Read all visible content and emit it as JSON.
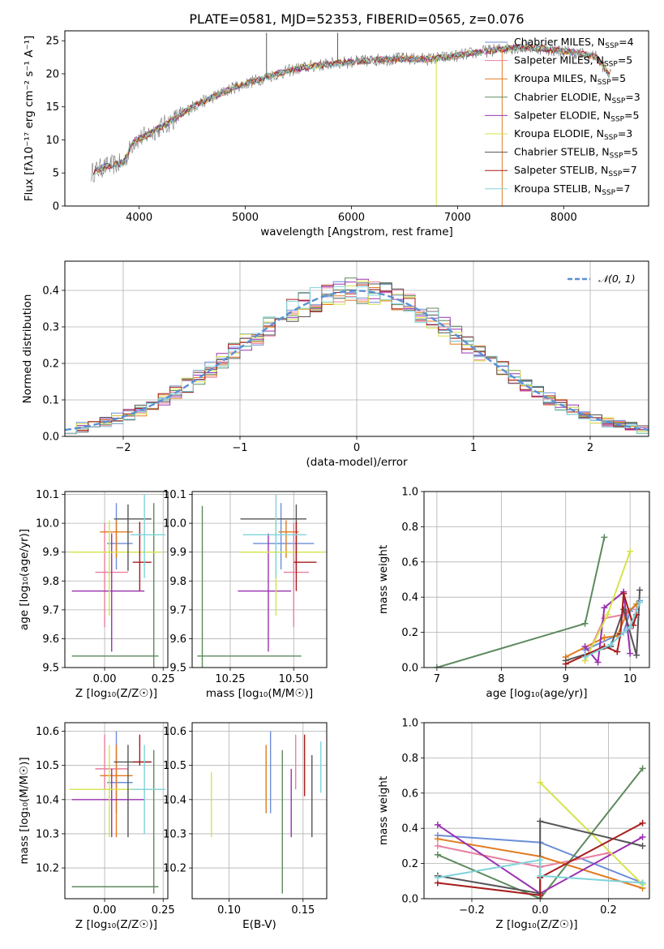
{
  "title": "PLATE=0581, MJD=52353, FIBERID=0565, z=0.076",
  "models": [
    {
      "name": "Chabrier MILES",
      "nssp": 4,
      "color": "#6c8ed8"
    },
    {
      "name": "Salpeter MILES",
      "nssp": 5,
      "color": "#e87fa0"
    },
    {
      "name": "Kroupa MILES",
      "nssp": 5,
      "color": "#e07b20"
    },
    {
      "name": "Chabrier ELODIE",
      "nssp": 3,
      "color": "#5e8a5e"
    },
    {
      "name": "Salpeter ELODIE",
      "nssp": 5,
      "color": "#9932b0"
    },
    {
      "name": "Kroupa ELODIE",
      "nssp": 3,
      "color": "#d6e34a"
    },
    {
      "name": "Chabrier STELIB",
      "nssp": 5,
      "color": "#555555"
    },
    {
      "name": "Salpeter STELIB",
      "nssp": 7,
      "color": "#a81c1c"
    },
    {
      "name": "Kroupa STELIB",
      "nssp": 7,
      "color": "#7fd3da"
    }
  ],
  "chart_data": [
    {
      "id": "spectrum",
      "type": "line",
      "xlabel": "wavelength [Angstrom, rest frame]",
      "xlim": [
        3300,
        8800
      ],
      "ylim": [
        0,
        26.5
      ],
      "xticks": [
        4000,
        5000,
        6000,
        7000,
        8000
      ],
      "yticks": [
        0,
        5,
        10,
        15,
        20,
        25
      ],
      "grid": false,
      "legend_position": "upper-right",
      "continuum": {
        "x": [
          3550,
          3650,
          3750,
          3850,
          3950,
          4050,
          4150,
          4300,
          4500,
          4700,
          4900,
          5100,
          5300,
          5500,
          5700,
          5900,
          6100,
          6300,
          6500,
          6700,
          6900,
          7100,
          7300,
          7500,
          7700,
          7900,
          8100,
          8300,
          8450
        ],
        "y": [
          5.0,
          5.8,
          6.2,
          6.5,
          9.8,
          10.5,
          11.5,
          12.8,
          15.0,
          16.5,
          18.0,
          19.0,
          20.0,
          20.8,
          21.3,
          21.7,
          21.9,
          22.2,
          22.3,
          22.2,
          22.5,
          23.0,
          23.5,
          23.9,
          24.0,
          23.6,
          23.2,
          22.6,
          19.5
        ]
      },
      "spikes": [
        {
          "x": 5200,
          "y": 26.2
        },
        {
          "x": 5870,
          "y": 26.2
        },
        {
          "x": 6800,
          "y": 0
        },
        {
          "x": 7420,
          "y": 0
        }
      ]
    },
    {
      "id": "residuals",
      "type": "step",
      "xlabel": "(data-model)/error",
      "ylabel": "Normed distribution",
      "xlim": [
        -2.5,
        2.5
      ],
      "ylim": [
        0,
        0.48
      ],
      "xticks": [
        -2,
        -1,
        0,
        1,
        2
      ],
      "yticks": [
        0.0,
        0.1,
        0.2,
        0.3,
        0.4
      ],
      "grid": true,
      "bin_width": 0.1,
      "reference": {
        "name": "𝒩(0, 1)",
        "style": "dashed",
        "color": "#5b8fd6"
      },
      "legend_position": "upper-right"
    },
    {
      "id": "age-vs-Z",
      "type": "errorbar",
      "xlabel": "Z [log₁₀(Z/Z☉)]",
      "ylabel": "age  [log₁₀(age/yr)]",
      "xlim": [
        -0.17,
        0.27
      ],
      "ylim": [
        9.5,
        10.11
      ],
      "xticks": [
        0.0,
        0.25
      ],
      "yticks": [
        9.5,
        9.6,
        9.7,
        9.8,
        9.9,
        10.0,
        10.1
      ],
      "grid": true,
      "points": [
        {
          "x": 0.05,
          "xerr": [
            0.04,
            0.07
          ],
          "y": 9.93,
          "yerr": [
            0.09,
            0.14
          ]
        },
        {
          "x": 0.0,
          "xerr": [
            0.04,
            0.1
          ],
          "y": 9.83,
          "yerr": [
            0.19,
            0.17
          ]
        },
        {
          "x": 0.05,
          "xerr": [
            0.07,
            0.07
          ],
          "y": 9.97,
          "yerr": [
            0.09,
            0.04
          ]
        },
        {
          "x": 0.21,
          "xerr": [
            0.35,
            0.02
          ],
          "y": 9.54,
          "yerr": [
            0.05,
            0.53
          ]
        },
        {
          "x": 0.03,
          "xerr": [
            0.17,
            0.14
          ],
          "y": 9.765,
          "yerr": [
            0.21,
            0.2
          ]
        },
        {
          "x": 0.02,
          "xerr": [
            0.17,
            0.22
          ],
          "y": 9.9,
          "yerr": [
            0.22,
            0.11
          ]
        },
        {
          "x": 0.1,
          "xerr": [
            0.06,
            0.1
          ],
          "y": 10.015,
          "yerr": [
            0.18,
            0.05
          ]
        },
        {
          "x": 0.15,
          "xerr": [
            0.03,
            0.05
          ],
          "y": 9.865,
          "yerr": [
            0.1,
            0.14
          ]
        },
        {
          "x": 0.17,
          "xerr": [
            0.06,
            0.09
          ],
          "y": 9.96,
          "yerr": [
            0.15,
            0.14
          ]
        }
      ]
    },
    {
      "id": "age-vs-mass",
      "type": "errorbar",
      "xlabel": "mass [log₁₀(M/M☉)]",
      "xlim": [
        10.1,
        10.63
      ],
      "ylim": [
        9.5,
        10.11
      ],
      "xticks": [
        10.25,
        10.5
      ],
      "yticks": [
        9.5,
        9.6,
        9.7,
        9.8,
        9.9,
        10.0,
        10.1
      ],
      "grid": true,
      "points": [
        {
          "x": 10.45,
          "xerr": [
            0.11,
            0.13
          ],
          "y": 9.93,
          "yerr": [
            0.09,
            0.14
          ]
        },
        {
          "x": 10.5,
          "xerr": [
            0.04,
            0.06
          ],
          "y": 9.83,
          "yerr": [
            0.19,
            0.17
          ]
        },
        {
          "x": 10.47,
          "xerr": [
            0.03,
            0.05
          ],
          "y": 9.97,
          "yerr": [
            0.09,
            0.04
          ]
        },
        {
          "x": 10.14,
          "xerr": [
            0.02,
            0.39
          ],
          "y": 9.54,
          "yerr": [
            0.05,
            0.52
          ]
        },
        {
          "x": 10.4,
          "xerr": [
            0.12,
            0.09
          ],
          "y": 9.765,
          "yerr": [
            0.21,
            0.2
          ]
        },
        {
          "x": 10.43,
          "xerr": [
            0.14,
            0.19
          ],
          "y": 9.9,
          "yerr": [
            0.22,
            0.11
          ]
        },
        {
          "x": 10.51,
          "xerr": [
            0.22,
            0.04
          ],
          "y": 10.015,
          "yerr": [
            0.18,
            0.05
          ]
        },
        {
          "x": 10.51,
          "xerr": [
            0.01,
            0.08
          ],
          "y": 9.865,
          "yerr": [
            0.1,
            0.14
          ]
        },
        {
          "x": 10.43,
          "xerr": [
            0.13,
            0.12
          ],
          "y": 9.96,
          "yerr": [
            0.15,
            0.14
          ]
        }
      ]
    },
    {
      "id": "weight-vs-age",
      "type": "line",
      "xlabel": "age  [log₁₀(age/yr)]",
      "ylabel": "mass weight",
      "xlim": [
        6.8,
        10.3
      ],
      "ylim": [
        0,
        1.0
      ],
      "xticks": [
        7,
        8,
        9,
        10
      ],
      "yticks": [
        0.0,
        0.2,
        0.4,
        0.6,
        0.8,
        1.0
      ],
      "grid": true,
      "series": [
        {
          "x": [
            9.3,
            9.9,
            10.0,
            10.15
          ],
          "y": [
            0.1,
            0.2,
            0.32,
            0.38
          ]
        },
        {
          "x": [
            9.3,
            9.6,
            9.9,
            10.0,
            10.1
          ],
          "y": [
            0.04,
            0.28,
            0.3,
            0.22,
            0.33
          ]
        },
        {
          "x": [
            9.0,
            9.6,
            9.8,
            9.95,
            10.1
          ],
          "y": [
            0.06,
            0.17,
            0.18,
            0.31,
            0.36
          ]
        },
        {
          "x": [
            7.0,
            9.3,
            9.6
          ],
          "y": [
            0.0,
            0.25,
            0.74
          ]
        },
        {
          "x": [
            9.3,
            9.5,
            9.6,
            9.9,
            10.0
          ],
          "y": [
            0.12,
            0.03,
            0.34,
            0.43,
            0.08
          ]
        },
        {
          "x": [
            9.3,
            9.65,
            10.0
          ],
          "y": [
            0.04,
            0.3,
            0.66
          ]
        },
        {
          "x": [
            9.0,
            9.7,
            9.9,
            10.1,
            10.15
          ],
          "y": [
            0.04,
            0.12,
            0.33,
            0.07,
            0.44
          ]
        },
        {
          "x": [
            9.0,
            9.6,
            9.8,
            9.85,
            9.9,
            10.05,
            10.1
          ],
          "y": [
            0.02,
            0.12,
            0.09,
            0.19,
            0.42,
            0.24,
            0.3
          ]
        },
        {
          "x": [
            9.3,
            9.7,
            9.9,
            10.0,
            10.15
          ],
          "y": [
            0.06,
            0.13,
            0.2,
            0.23,
            0.37
          ]
        }
      ]
    },
    {
      "id": "mass-vs-Z",
      "type": "errorbar",
      "xlabel": "Z [log₁₀(Z/Z☉)]",
      "ylabel": "mass [log₁₀(M/M☉)]",
      "xlim": [
        -0.17,
        0.27
      ],
      "ylim": [
        10.11,
        10.625
      ],
      "xticks": [
        0.0,
        0.25
      ],
      "yticks": [
        10.2,
        10.3,
        10.4,
        10.5,
        10.6
      ],
      "grid": true,
      "points": [
        {
          "x": 0.05,
          "xerr": [
            0.04,
            0.07
          ],
          "y": 10.45,
          "yerr": [
            0.09,
            0.15
          ]
        },
        {
          "x": 0.0,
          "xerr": [
            0.04,
            0.1
          ],
          "y": 10.49,
          "yerr": [
            0.06,
            0.1
          ]
        },
        {
          "x": 0.05,
          "xerr": [
            0.07,
            0.07
          ],
          "y": 10.47,
          "yerr": [
            0.18,
            0.09
          ]
        },
        {
          "x": 0.21,
          "xerr": [
            0.35,
            0.02
          ],
          "y": 10.145,
          "yerr": [
            0.02,
            0.4
          ]
        },
        {
          "x": 0.03,
          "xerr": [
            0.17,
            0.14
          ],
          "y": 10.4,
          "yerr": [
            0.11,
            0.09
          ]
        },
        {
          "x": 0.02,
          "xerr": [
            0.17,
            0.22
          ],
          "y": 10.43,
          "yerr": [
            0.14,
            0.13
          ]
        },
        {
          "x": 0.1,
          "xerr": [
            0.06,
            0.1
          ],
          "y": 10.51,
          "yerr": [
            0.22,
            0.05
          ]
        },
        {
          "x": 0.15,
          "xerr": [
            0.03,
            0.05
          ],
          "y": 10.51,
          "yerr": [
            0.01,
            0.08
          ]
        },
        {
          "x": 0.17,
          "xerr": [
            0.06,
            0.09
          ],
          "y": 10.43,
          "yerr": [
            0.13,
            0.13
          ]
        }
      ]
    },
    {
      "id": "mass-vs-ebv",
      "type": "errorbar",
      "xlabel": "E(B-V)",
      "xlim": [
        0.075,
        0.166
      ],
      "ylim": [
        10.11,
        10.625
      ],
      "xticks": [
        0.1,
        0.15
      ],
      "yticks": [
        10.2,
        10.3,
        10.4,
        10.5,
        10.6
      ],
      "grid": true,
      "points": [
        {
          "x": 0.128,
          "xerr": [
            0,
            0
          ],
          "y": 10.45,
          "yerr": [
            0.09,
            0.15
          ]
        },
        {
          "x": 0.145,
          "xerr": [
            0,
            0
          ],
          "y": 10.49,
          "yerr": [
            0.06,
            0.1
          ]
        },
        {
          "x": 0.125,
          "xerr": [
            0,
            0
          ],
          "y": 10.47,
          "yerr": [
            0.11,
            0.09
          ]
        },
        {
          "x": 0.136,
          "xerr": [
            0,
            0
          ],
          "y": 10.145,
          "yerr": [
            0.02,
            0.4
          ]
        },
        {
          "x": 0.142,
          "xerr": [
            0,
            0
          ],
          "y": 10.4,
          "yerr": [
            0.11,
            0.09
          ]
        },
        {
          "x": 0.088,
          "xerr": [
            0,
            0
          ],
          "y": 10.38,
          "yerr": [
            0.09,
            0.1
          ]
        },
        {
          "x": 0.156,
          "xerr": [
            0,
            0
          ],
          "y": 10.41,
          "yerr": [
            0.12,
            0.12
          ]
        },
        {
          "x": 0.151,
          "xerr": [
            0,
            0
          ],
          "y": 10.47,
          "yerr": [
            0.06,
            0.12
          ]
        },
        {
          "x": 0.162,
          "xerr": [
            0,
            0
          ],
          "y": 10.48,
          "yerr": [
            0.06,
            0.09
          ]
        }
      ]
    },
    {
      "id": "weight-vs-Z",
      "type": "line",
      "xlabel": "Z [log₁₀(Z/Z☉)]",
      "ylabel": "mass weight",
      "xlim": [
        -0.34,
        0.32
      ],
      "ylim": [
        0,
        1.0
      ],
      "xticks": [
        -0.2,
        0.0,
        0.2
      ],
      "yticks": [
        0.0,
        0.2,
        0.4,
        0.6,
        0.8,
        1.0
      ],
      "grid": true,
      "series": [
        {
          "x": [
            -0.3,
            0.0,
            0.3
          ],
          "y": [
            0.36,
            0.32,
            0.09
          ]
        },
        {
          "x": [
            -0.3,
            0.0,
            0.2
          ],
          "y": [
            0.3,
            0.18,
            0.26
          ]
        },
        {
          "x": [
            -0.3,
            0.0,
            0.3
          ],
          "y": [
            0.34,
            0.24,
            0.06
          ]
        },
        {
          "x": [
            -0.3,
            0.0,
            0.3
          ],
          "y": [
            0.25,
            0.0,
            0.74
          ]
        },
        {
          "x": [
            -0.3,
            0.0,
            0.3
          ],
          "y": [
            0.42,
            0.03,
            0.35
          ]
        },
        {
          "x": [
            0.0,
            0.3
          ],
          "y": [
            0.66,
            0.08
          ]
        },
        {
          "x": [
            -0.3,
            0.0,
            0.0,
            0.3
          ],
          "y": [
            0.13,
            0.03,
            0.44,
            0.3
          ]
        },
        {
          "x": [
            -0.3,
            0.0,
            0.0,
            0.3
          ],
          "y": [
            0.09,
            0.02,
            0.12,
            0.43
          ]
        },
        {
          "x": [
            -0.3,
            0.0,
            0.0,
            0.3
          ],
          "y": [
            0.12,
            0.22,
            0.13,
            0.09
          ]
        }
      ]
    }
  ]
}
